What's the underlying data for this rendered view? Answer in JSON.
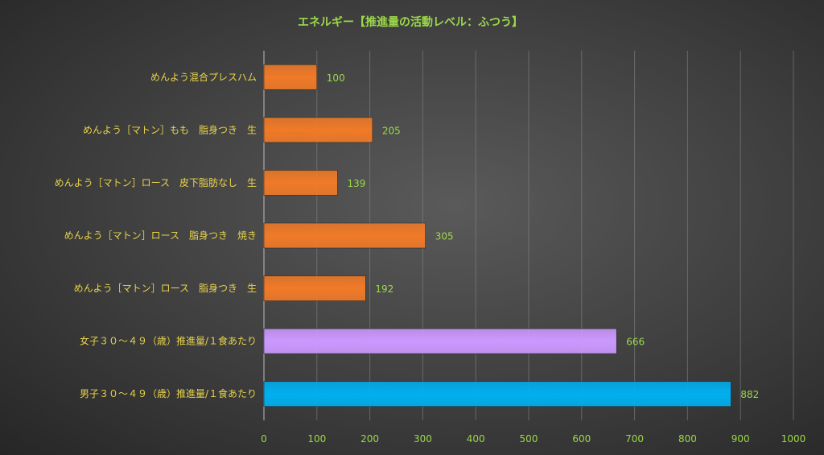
{
  "chart_data": {
    "type": "bar",
    "orientation": "horizontal",
    "title": "エネルギー【推進量の活動レベル：ふつう】",
    "categories": [
      "めんよう混合プレスハム",
      "めんよう［マトン］もも　脂身つき　生",
      "めんよう［マトン］ロース　皮下脂肪なし　生",
      "めんよう［マトン］ロース　脂身つき　焼き",
      "めんよう［マトン］ロース　脂身つき　生",
      "女子３０～４９（歳）推進量/１食あたり",
      "男子３０～４９（歳）推進量/１食あたり"
    ],
    "values": [
      100,
      205,
      139,
      305,
      192,
      666,
      882
    ],
    "bar_colors": [
      "#f07a28",
      "#f07a28",
      "#f07a28",
      "#f07a28",
      "#f07a28",
      "#cc99ff",
      "#00b0f0"
    ],
    "xlim": [
      0,
      1000
    ],
    "xticks": [
      0,
      100,
      200,
      300,
      400,
      500,
      600,
      700,
      800,
      900,
      1000
    ],
    "grid": true,
    "legend": "none"
  }
}
